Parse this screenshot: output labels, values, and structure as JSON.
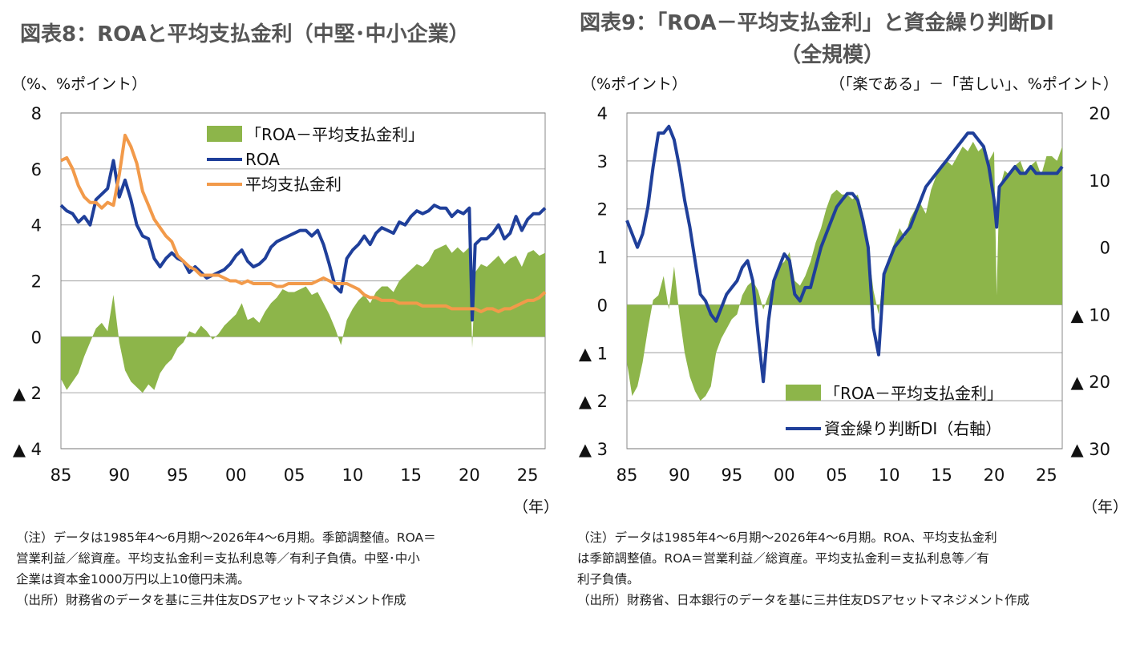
{
  "left": {
    "title": "図表8：ROAと平均支払金利（中堅･中小企業）",
    "unit": "（%、%ポイント）",
    "year_unit": "（年）",
    "notes": [
      "（注）データは1985年4～6月期～2026年4～6月期。季節調整値。ROA＝",
      "営業利益／総資産。平均支払金利＝支払利息等／有利子負債。中堅･中小",
      "企業は資本金1000万円以上10億円未満。",
      "（出所）財務省のデータを基に三井住友DSアセットマネジメント作成"
    ],
    "colors": {
      "spread": "#8db54a",
      "roa": "#1f3f9a",
      "rate": "#f29a4a",
      "grid": "#b0b0b0"
    },
    "chart_data": {
      "type": "line",
      "x_ticks": [
        "85",
        "90",
        "95",
        "00",
        "05",
        "10",
        "15",
        "20",
        "25"
      ],
      "y_ticks": [
        "8",
        "6",
        "4",
        "2",
        "0",
        "▲ 2",
        "▲ 4"
      ],
      "ylim": [
        -4,
        8
      ],
      "xlim": [
        1985,
        2026.5
      ],
      "legend": "top-center",
      "series": [
        {
          "name": "「ROA－平均支払金利」",
          "type": "area",
          "x": [
            1985,
            1985.5,
            1986,
            1986.5,
            1987,
            1987.5,
            1988,
            1988.5,
            1989,
            1989.5,
            1990,
            1990.5,
            1991,
            1991.5,
            1992,
            1992.5,
            1993,
            1993.5,
            1994,
            1994.5,
            1995,
            1995.5,
            1996,
            1996.5,
            1997,
            1997.5,
            1998,
            1998.5,
            1999,
            1999.5,
            2000,
            2000.5,
            2001,
            2001.5,
            2002,
            2002.5,
            2003,
            2003.5,
            2004,
            2004.5,
            2005,
            2005.5,
            2006,
            2006.5,
            2007,
            2007.5,
            2008,
            2008.5,
            2009,
            2009.5,
            2010,
            2010.5,
            2011,
            2011.5,
            2012,
            2012.5,
            2013,
            2013.5,
            2014,
            2014.5,
            2015,
            2015.5,
            2016,
            2016.5,
            2017,
            2017.5,
            2018,
            2018.5,
            2019,
            2019.5,
            2020,
            2020.25,
            2020.5,
            2021,
            2021.5,
            2022,
            2022.5,
            2023,
            2023.5,
            2024,
            2024.5,
            2025,
            2025.5,
            2026,
            2026.5
          ],
          "values": [
            -1.5,
            -1.9,
            -1.6,
            -1.3,
            -0.7,
            -0.2,
            0.3,
            0.5,
            0.2,
            1.5,
            -0.2,
            -1.2,
            -1.6,
            -1.8,
            -2.0,
            -1.7,
            -1.9,
            -1.3,
            -1.0,
            -0.8,
            -0.4,
            -0.2,
            0.2,
            0.1,
            0.4,
            0.2,
            -0.1,
            0.1,
            0.4,
            0.6,
            0.8,
            1.2,
            0.6,
            0.7,
            0.5,
            0.9,
            1.2,
            1.4,
            1.7,
            1.6,
            1.6,
            1.7,
            1.8,
            1.5,
            1.6,
            1.2,
            0.8,
            0.3,
            -0.3,
            0.6,
            1.0,
            1.3,
            1.5,
            1.2,
            1.6,
            1.8,
            1.8,
            1.6,
            2.0,
            2.2,
            2.4,
            2.6,
            2.5,
            2.7,
            3.1,
            3.2,
            3.3,
            3.0,
            3.2,
            3.0,
            3.2,
            -0.4,
            2.3,
            2.6,
            2.5,
            2.7,
            2.9,
            2.6,
            2.8,
            2.9,
            2.5,
            3.0,
            3.1,
            2.9,
            3.0
          ]
        },
        {
          "name": "ROA",
          "type": "line",
          "x": [
            1985,
            1985.5,
            1986,
            1986.5,
            1987,
            1987.5,
            1988,
            1988.5,
            1989,
            1989.5,
            1990,
            1990.5,
            1991,
            1991.5,
            1992,
            1992.5,
            1993,
            1993.5,
            1994,
            1994.5,
            1995,
            1995.5,
            1996,
            1996.5,
            1997,
            1997.5,
            1998,
            1998.5,
            1999,
            1999.5,
            2000,
            2000.5,
            2001,
            2001.5,
            2002,
            2002.5,
            2003,
            2003.5,
            2004,
            2004.5,
            2005,
            2005.5,
            2006,
            2006.5,
            2007,
            2007.5,
            2008,
            2008.5,
            2009,
            2009.5,
            2010,
            2010.5,
            2011,
            2011.5,
            2012,
            2012.5,
            2013,
            2013.5,
            2014,
            2014.5,
            2015,
            2015.5,
            2016,
            2016.5,
            2017,
            2017.5,
            2018,
            2018.5,
            2019,
            2019.5,
            2020,
            2020.25,
            2020.5,
            2021,
            2021.5,
            2022,
            2022.5,
            2023,
            2023.5,
            2024,
            2024.5,
            2025,
            2025.5,
            2026,
            2026.5
          ],
          "values": [
            4.7,
            4.5,
            4.4,
            4.1,
            4.3,
            4.0,
            4.9,
            5.1,
            5.3,
            6.3,
            5.0,
            5.6,
            4.9,
            4.0,
            3.6,
            3.5,
            2.8,
            2.5,
            2.8,
            3.0,
            2.8,
            2.7,
            2.3,
            2.5,
            2.3,
            2.1,
            2.2,
            2.3,
            2.4,
            2.6,
            2.9,
            3.1,
            2.7,
            2.5,
            2.6,
            2.8,
            3.2,
            3.4,
            3.5,
            3.6,
            3.7,
            3.8,
            3.8,
            3.6,
            3.8,
            3.3,
            2.6,
            1.8,
            1.6,
            2.8,
            3.1,
            3.3,
            3.6,
            3.3,
            3.7,
            3.9,
            3.8,
            3.7,
            4.1,
            4.0,
            4.3,
            4.5,
            4.4,
            4.5,
            4.7,
            4.6,
            4.6,
            4.3,
            4.5,
            4.4,
            4.6,
            0.6,
            3.3,
            3.5,
            3.5,
            3.7,
            4.0,
            3.5,
            3.7,
            4.3,
            3.8,
            4.2,
            4.4,
            4.4,
            4.6
          ]
        },
        {
          "name": "平均支払金利",
          "type": "line",
          "x": [
            1985,
            1985.5,
            1986,
            1986.5,
            1987,
            1987.5,
            1988,
            1988.5,
            1989,
            1989.5,
            1990,
            1990.5,
            1991,
            1991.5,
            1992,
            1992.5,
            1993,
            1993.5,
            1994,
            1994.5,
            1995,
            1995.5,
            1996,
            1996.5,
            1997,
            1997.5,
            1998,
            1998.5,
            1999,
            1999.5,
            2000,
            2000.5,
            2001,
            2001.5,
            2002,
            2002.5,
            2003,
            2003.5,
            2004,
            2004.5,
            2005,
            2005.5,
            2006,
            2006.5,
            2007,
            2007.5,
            2008,
            2008.5,
            2009,
            2009.5,
            2010,
            2010.5,
            2011,
            2011.5,
            2012,
            2012.5,
            2013,
            2013.5,
            2014,
            2014.5,
            2015,
            2015.5,
            2016,
            2016.5,
            2017,
            2017.5,
            2018,
            2018.5,
            2019,
            2019.5,
            2020,
            2020.25,
            2020.5,
            2021,
            2021.5,
            2022,
            2022.5,
            2023,
            2023.5,
            2024,
            2024.5,
            2025,
            2025.5,
            2026,
            2026.5
          ],
          "values": [
            6.3,
            6.4,
            6.0,
            5.4,
            5.0,
            4.8,
            4.8,
            4.6,
            4.8,
            4.7,
            5.8,
            7.2,
            6.8,
            6.2,
            5.2,
            4.7,
            4.2,
            3.9,
            3.6,
            3.4,
            2.9,
            2.7,
            2.5,
            2.4,
            2.2,
            2.2,
            2.2,
            2.2,
            2.1,
            2.0,
            2.0,
            1.9,
            2.0,
            1.9,
            1.9,
            1.9,
            1.9,
            1.8,
            1.8,
            1.9,
            1.9,
            1.9,
            1.9,
            1.9,
            2.0,
            2.1,
            2.0,
            1.9,
            1.9,
            1.9,
            1.8,
            1.7,
            1.5,
            1.4,
            1.4,
            1.3,
            1.3,
            1.3,
            1.2,
            1.2,
            1.2,
            1.2,
            1.1,
            1.1,
            1.1,
            1.1,
            1.1,
            1.0,
            1.0,
            1.0,
            1.0,
            1.0,
            1.0,
            0.9,
            1.0,
            1.0,
            0.9,
            1.0,
            1.0,
            1.1,
            1.2,
            1.3,
            1.3,
            1.4,
            1.6
          ]
        }
      ]
    }
  },
  "right": {
    "title_line1": "図表9：「ROA－平均支払金利」と資金繰り判断DI",
    "title_line2": "（全規模）",
    "unit_left": "（%ポイント）",
    "unit_right": "（「楽である」－「苦しい」、%ポイント）",
    "year_unit": "（年）",
    "notes": [
      "（注）データは1985年4～6月期～2026年4～6月期。ROA、平均支払金利",
      "は季節調整値。ROA＝営業利益／総資産。平均支払金利＝支払利息等／有",
      "利子負債。",
      "（出所）財務省、日本銀行のデータを基に三井住友DSアセットマネジメント作成"
    ],
    "colors": {
      "spread": "#8db54a",
      "di": "#1f3f9a",
      "grid": "#b0b0b0"
    },
    "chart_data": {
      "type": "line",
      "x_ticks": [
        "85",
        "90",
        "95",
        "00",
        "05",
        "10",
        "15",
        "20",
        "25"
      ],
      "y_ticks_left": [
        "4",
        "3",
        "2",
        "1",
        "0",
        "▲ 1",
        "▲ 2",
        "▲ 3"
      ],
      "y_ticks_right": [
        "20",
        "10",
        "0",
        "▲ 10",
        "▲ 20",
        "▲ 30"
      ],
      "ylim_left": [
        -3,
        4
      ],
      "ylim_right": [
        -30,
        20
      ],
      "xlim": [
        1985,
        2026.5
      ],
      "legend": "bottom-right",
      "series": [
        {
          "name": "「ROA－平均支払金利」",
          "type": "area",
          "axis": "left",
          "x": [
            1985,
            1985.5,
            1986,
            1986.5,
            1987,
            1987.5,
            1988,
            1988.5,
            1989,
            1989.5,
            1990,
            1990.5,
            1991,
            1991.5,
            1992,
            1992.5,
            1993,
            1993.5,
            1994,
            1994.5,
            1995,
            1995.5,
            1996,
            1996.5,
            1997,
            1997.5,
            1998,
            1998.5,
            1999,
            1999.5,
            2000,
            2000.5,
            2001,
            2001.5,
            2002,
            2002.5,
            2003,
            2003.5,
            2004,
            2004.5,
            2005,
            2005.5,
            2006,
            2006.5,
            2007,
            2007.5,
            2008,
            2008.5,
            2009,
            2009.5,
            2010,
            2010.5,
            2011,
            2011.5,
            2012,
            2012.5,
            2013,
            2013.5,
            2014,
            2014.5,
            2015,
            2015.5,
            2016,
            2016.5,
            2017,
            2017.5,
            2018,
            2018.5,
            2019,
            2019.5,
            2020,
            2020.25,
            2020.5,
            2021,
            2021.5,
            2022,
            2022.5,
            2023,
            2023.5,
            2024,
            2024.5,
            2025,
            2025.5,
            2026,
            2026.5
          ],
          "values": [
            -1.2,
            -1.9,
            -1.7,
            -1.2,
            -0.5,
            0.1,
            0.2,
            0.6,
            -0.1,
            0.8,
            -0.2,
            -1.0,
            -1.5,
            -1.8,
            -2.0,
            -1.9,
            -1.7,
            -1.0,
            -0.7,
            -0.5,
            -0.3,
            -0.2,
            0.2,
            0.4,
            0.5,
            0.3,
            -0.1,
            0.2,
            0.5,
            0.8,
            0.9,
            1.1,
            0.5,
            0.4,
            0.6,
            0.9,
            1.3,
            1.6,
            2.0,
            2.3,
            2.4,
            2.3,
            2.3,
            2.2,
            2.3,
            1.9,
            1.2,
            0.3,
            -0.2,
            0.7,
            1.0,
            1.3,
            1.6,
            1.4,
            1.8,
            2.0,
            2.1,
            1.9,
            2.4,
            2.7,
            2.9,
            3.0,
            2.9,
            3.1,
            3.3,
            3.2,
            3.4,
            3.2,
            3.3,
            3.0,
            3.2,
            0.2,
            2.4,
            2.8,
            2.7,
            2.9,
            3.0,
            2.7,
            2.9,
            3.0,
            2.7,
            3.1,
            3.1,
            3.0,
            3.3
          ]
        },
        {
          "name": "資金繰り判断DI（右軸）",
          "type": "line",
          "axis": "right",
          "x": [
            1985,
            1985.5,
            1986,
            1986.5,
            1987,
            1987.5,
            1988,
            1988.5,
            1989,
            1989.5,
            1990,
            1990.5,
            1991,
            1991.5,
            1992,
            1992.5,
            1993,
            1993.5,
            1994,
            1994.5,
            1995,
            1995.5,
            1996,
            1996.5,
            1997,
            1997.5,
            1998,
            1998.5,
            1999,
            1999.5,
            2000,
            2000.5,
            2001,
            2001.5,
            2002,
            2002.5,
            2003,
            2003.5,
            2004,
            2004.5,
            2005,
            2005.5,
            2006,
            2006.5,
            2007,
            2007.5,
            2008,
            2008.5,
            2009,
            2009.5,
            2010,
            2010.5,
            2011,
            2011.5,
            2012,
            2012.5,
            2013,
            2013.5,
            2014,
            2014.5,
            2015,
            2015.5,
            2016,
            2016.5,
            2017,
            2017.5,
            2018,
            2018.5,
            2019,
            2019.5,
            2020,
            2020.25,
            2020.5,
            2021,
            2021.5,
            2022,
            2022.5,
            2023,
            2023.5,
            2024,
            2024.5,
            2025,
            2025.5,
            2026,
            2026.5
          ],
          "values": [
            4,
            2,
            0,
            2,
            6,
            12,
            17,
            17,
            18,
            16,
            12,
            7,
            3,
            -2,
            -7,
            -8,
            -10,
            -11,
            -9,
            -7,
            -6,
            -5,
            -3,
            -2,
            -5,
            -13,
            -20,
            -11,
            -5,
            -3,
            -1,
            -2,
            -7,
            -8,
            -6,
            -6,
            -3,
            0,
            2,
            4,
            6,
            7,
            8,
            8,
            7,
            4,
            0,
            -12,
            -16,
            -4,
            -2,
            0,
            1,
            2,
            3,
            5,
            7,
            9,
            10,
            11,
            12,
            13,
            14,
            15,
            16,
            17,
            17,
            16,
            15,
            12,
            7,
            3,
            9,
            10,
            11,
            12,
            11,
            11,
            12,
            11,
            11,
            11,
            11,
            11,
            12
          ]
        }
      ]
    }
  }
}
